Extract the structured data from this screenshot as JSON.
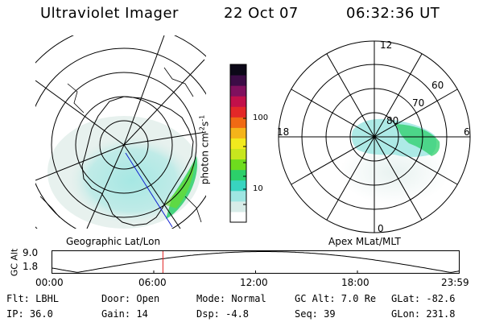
{
  "header": {
    "title": "Ultraviolet Imager",
    "date": "22 Oct 07",
    "time": "06:32:36 UT"
  },
  "geographic_panel": {
    "label": "Geographic Lat/Lon"
  },
  "apex_panel": {
    "label": "Apex MLat/MLT",
    "mlt_labels": [
      "12",
      "18",
      "6",
      "0"
    ],
    "mlat_labels": [
      "60",
      "70",
      "80"
    ]
  },
  "colorbar": {
    "unit_text": "photon cm",
    "unit_exp1": "-2",
    "unit_mid": "s",
    "unit_exp2": "-1",
    "ticks": [
      "100",
      "10"
    ],
    "scale": "log",
    "colors": [
      "#ffffff",
      "#d8ece8",
      "#9fe6e2",
      "#38d4c0",
      "#2ccf6a",
      "#6edc1e",
      "#c8e61e",
      "#f2ea1e",
      "#f5b41a",
      "#f06a14",
      "#e32828",
      "#c2104a",
      "#80105e",
      "#3c0c46",
      "#0c0818"
    ]
  },
  "altitude_panel": {
    "title": "GC Alt",
    "y_ticks": [
      "9.0",
      "1.8"
    ],
    "x_ticks": [
      "00:00",
      "06:00",
      "12:00",
      "18:00",
      "23:59"
    ],
    "current_time_hours": 6.54,
    "curve_color": "#000000",
    "marker_color": "#e02020"
  },
  "info": {
    "flt": "Flt: LBHL",
    "ip": "IP: 36.0",
    "door": "Door: Open",
    "gain": "Gain: 14",
    "mode": "Mode: Normal",
    "dsp": "Dsp:   -4.8",
    "gc_alt": "GC Alt: 7.0 Re",
    "seq": "Seq: 39",
    "glat": "GLat: -82.6",
    "glon": "GLon: 231.8"
  }
}
